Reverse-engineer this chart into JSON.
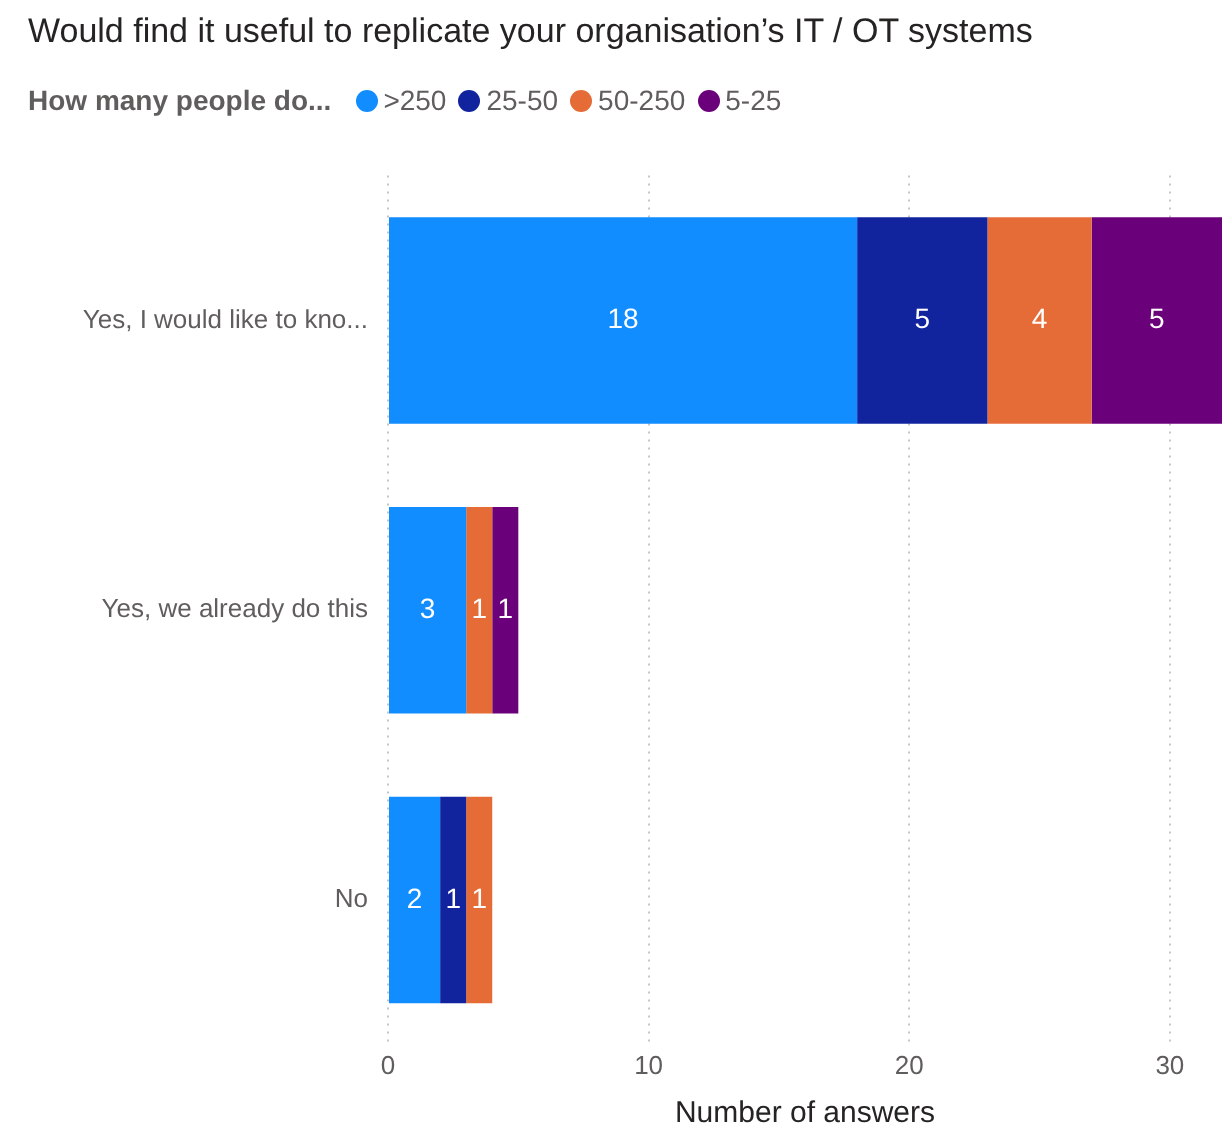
{
  "chart_data": {
    "type": "bar",
    "orientation": "horizontal",
    "stacked": true,
    "title": "Would find it useful to replicate your organisation’s IT / OT systems",
    "legend_title": "How many people do...",
    "xlabel": "Number of answers",
    "categories": [
      "Yes, I would like to kno...",
      "Yes, we already do this",
      "No"
    ],
    "series": [
      {
        "name": ">250",
        "color": "#118dff",
        "values": [
          18,
          3,
          2
        ]
      },
      {
        "name": "25-50",
        "color": "#12239e",
        "values": [
          5,
          null,
          1
        ]
      },
      {
        "name": "50-250",
        "color": "#e66c37",
        "values": [
          4,
          1,
          1
        ]
      },
      {
        "name": "5-25",
        "color": "#6b007b",
        "values": [
          5,
          1,
          null
        ]
      }
    ],
    "xlim": [
      0,
      32
    ],
    "xticks": [
      0,
      10,
      20,
      30
    ],
    "grid": "x",
    "legend": "top left",
    "data_labels": true
  }
}
